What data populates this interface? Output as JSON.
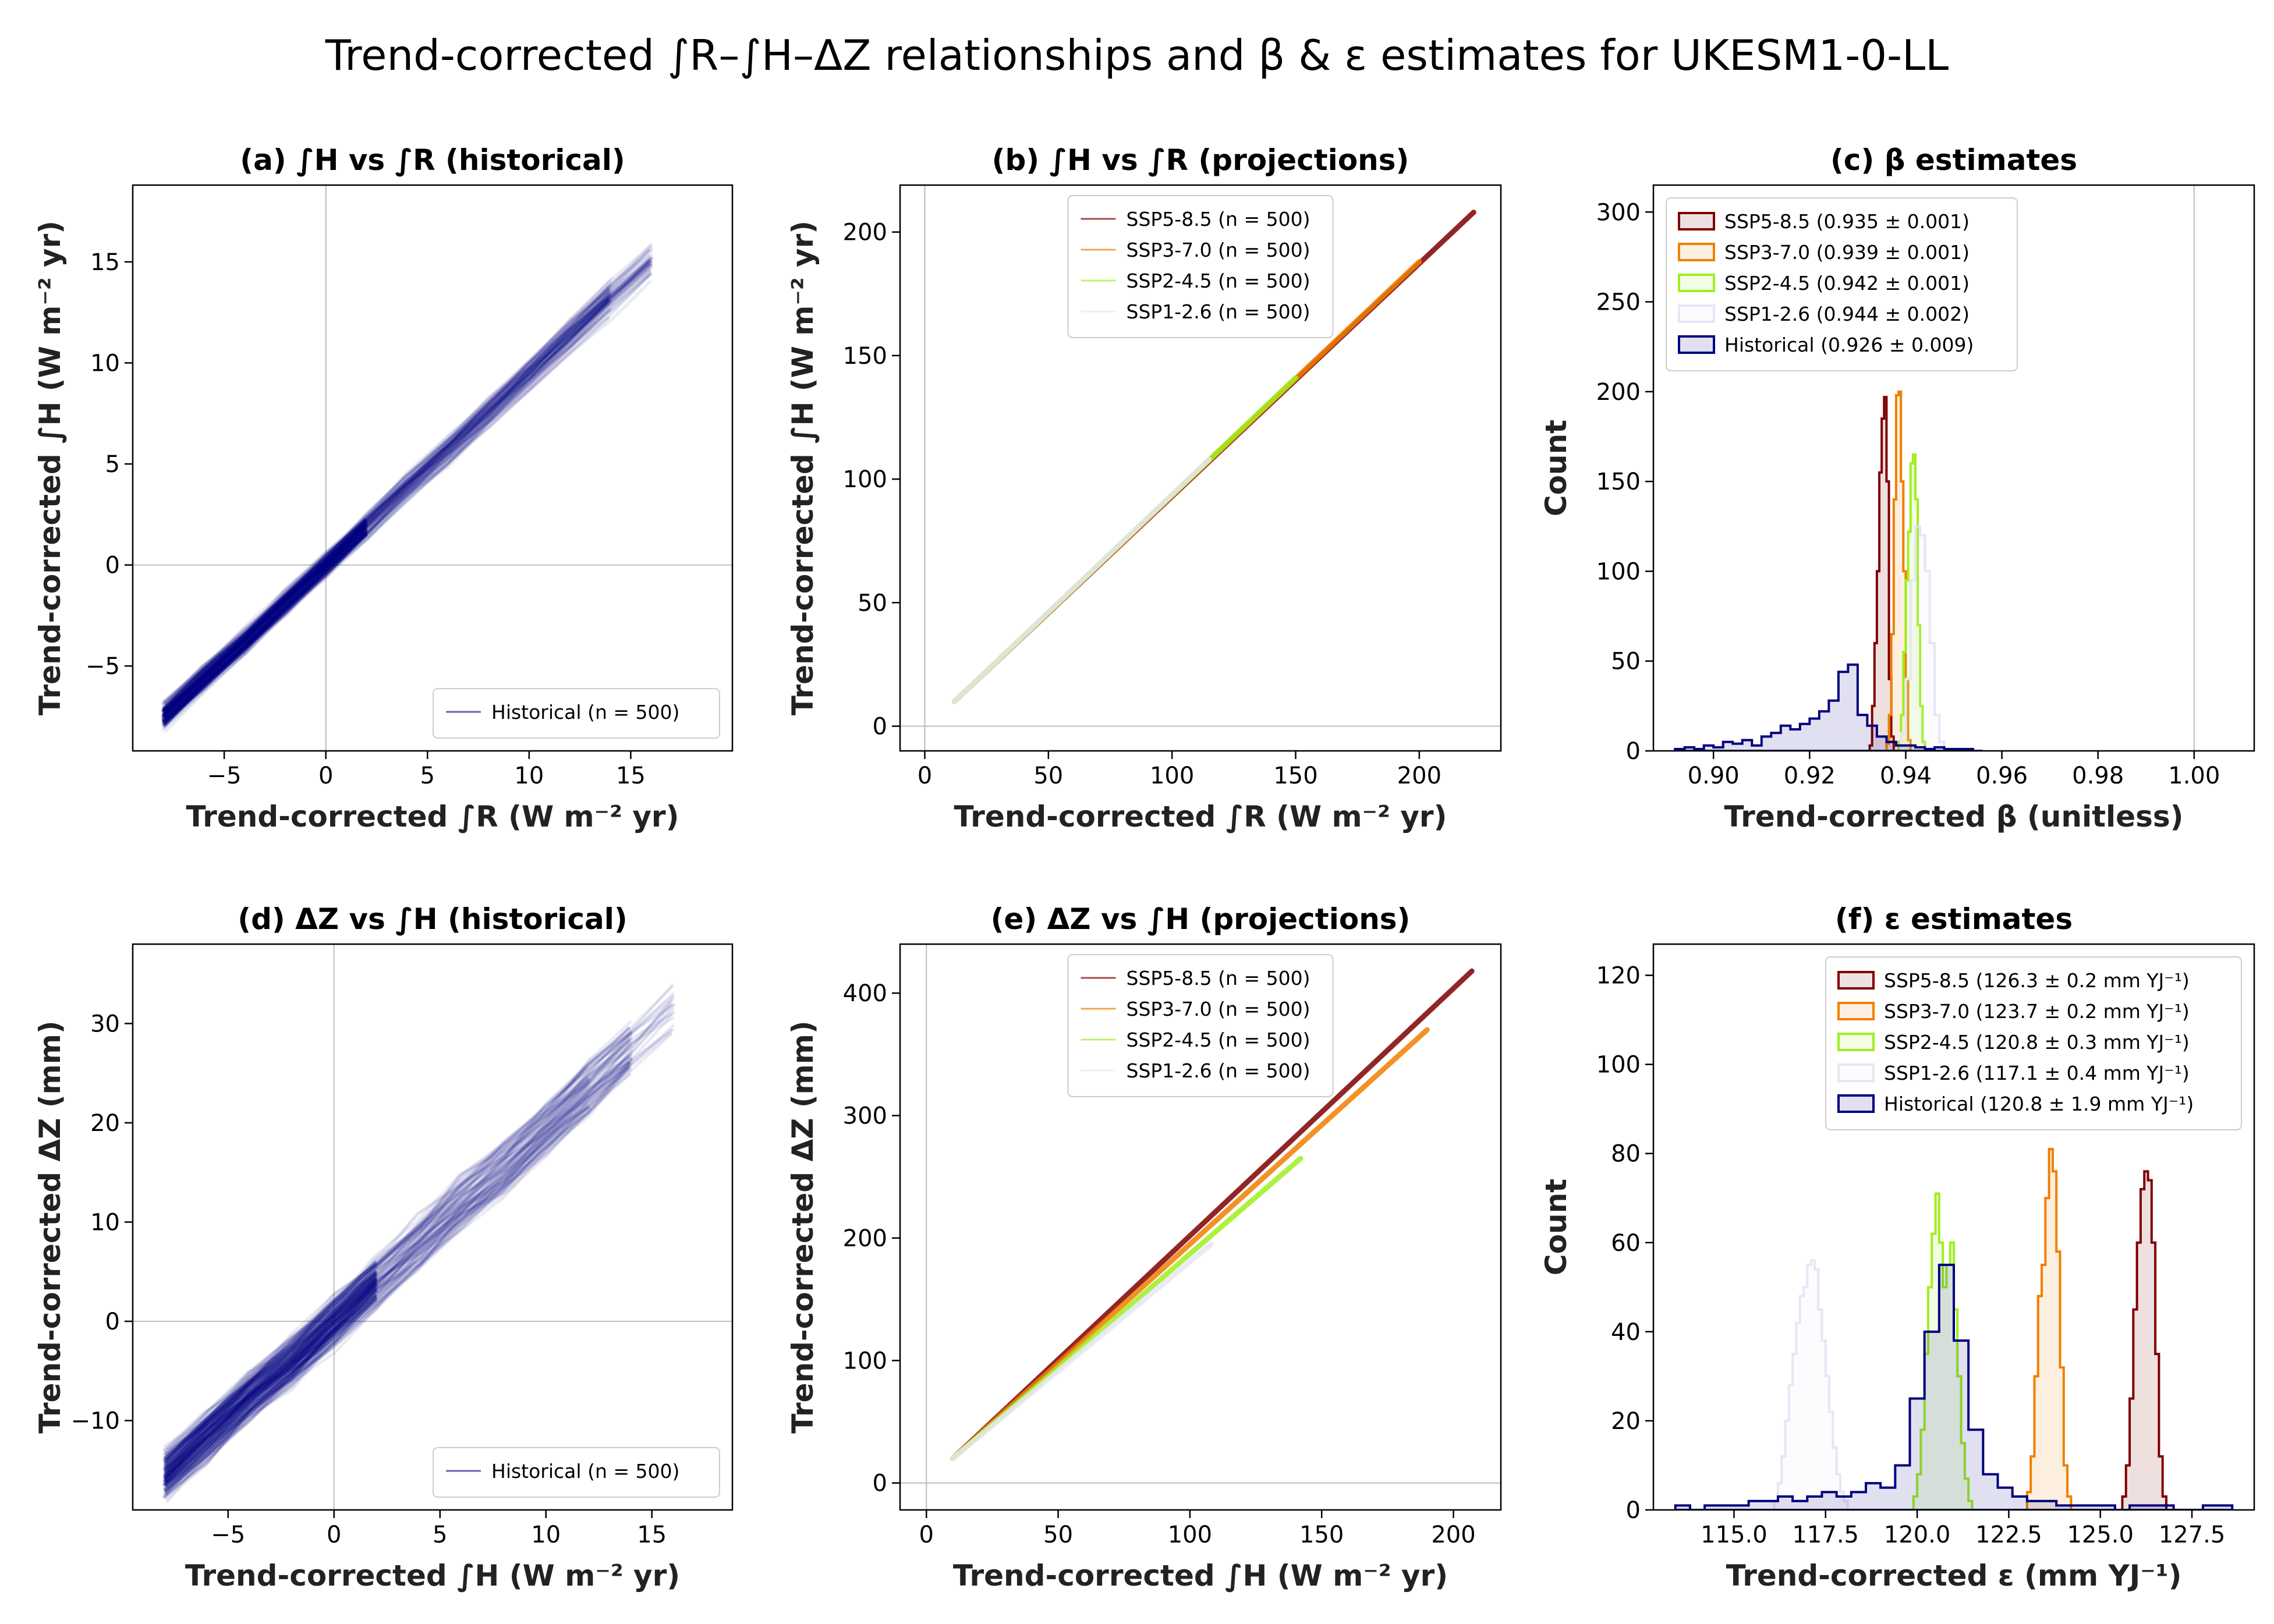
{
  "title": "Trend-corrected ∫R–∫H–ΔZ relationships and β & ε estimates for UKESM1-0-LL",
  "colors": {
    "ssp585": "#7f0000",
    "ssp370": "#f07f00",
    "ssp245": "#9fef1f",
    "ssp126": "#e6e6f5",
    "historical": "#000080"
  },
  "chart_data": [
    {
      "id": "a",
      "type": "line",
      "title": "(a) ∫H vs ∫R (historical)",
      "xlabel": "Trend-corrected ∫R (W m⁻² yr)",
      "ylabel": "Trend-corrected ∫H (W m⁻² yr)",
      "xlim": [
        -9.5,
        20
      ],
      "ylim": [
        -9.2,
        18.8
      ],
      "xticks": [
        -5,
        0,
        5,
        10,
        15
      ],
      "yticks": [
        -5,
        0,
        5,
        10,
        15
      ],
      "zero_lines": true,
      "legend_loc": "lower right",
      "series": [
        {
          "name": "Historical (n = 500)",
          "color_key": "historical",
          "n": 500,
          "style": "ensemble",
          "x": [
            -8,
            -6,
            -4,
            -2,
            0,
            2,
            4,
            6,
            8,
            10,
            12,
            14,
            16,
            18
          ],
          "y": [
            -7.5,
            -5.6,
            -3.8,
            -1.9,
            0,
            1.9,
            3.8,
            5.6,
            7.5,
            9.4,
            11.3,
            13.2,
            15.0,
            16.9
          ],
          "spread": 0.55
        }
      ]
    },
    {
      "id": "b",
      "type": "line",
      "title": "(b) ∫H vs ∫R (projections)",
      "xlabel": "Trend-corrected ∫R (W m⁻² yr)",
      "ylabel": "Trend-corrected ∫H (W m⁻² yr)",
      "xlim": [
        -10,
        233
      ],
      "ylim": [
        -10,
        219
      ],
      "xticks": [
        0,
        50,
        100,
        150,
        200
      ],
      "yticks": [
        0,
        50,
        100,
        150,
        200
      ],
      "zero_lines": true,
      "legend_loc": "upper center",
      "series": [
        {
          "name": "SSP5-8.5 (n = 500)",
          "color_key": "ssp585",
          "style": "line",
          "x": [
            12,
            222
          ],
          "y": [
            10,
            208
          ]
        },
        {
          "name": "SSP3-7.0 (n = 500)",
          "color_key": "ssp370",
          "style": "line",
          "x": [
            12,
            200
          ],
          "y": [
            10,
            188
          ]
        },
        {
          "name": "SSP2-4.5 (n = 500)",
          "color_key": "ssp245",
          "style": "line",
          "x": [
            12,
            150
          ],
          "y": [
            10,
            141
          ]
        },
        {
          "name": "SSP1-2.6 (n = 500)",
          "color_key": "ssp126",
          "style": "line",
          "x": [
            12,
            115
          ],
          "y": [
            10,
            108
          ]
        }
      ]
    },
    {
      "id": "c",
      "type": "bar",
      "title": "(c) β estimates",
      "xlabel": "Trend-corrected β (unitless)",
      "ylabel": "Count",
      "xlim": [
        0.8875,
        1.0125
      ],
      "ylim": [
        0,
        315
      ],
      "xticks": [
        0.9,
        0.92,
        0.94,
        0.96,
        0.98,
        1.0
      ],
      "xtick_labels": [
        "0.90",
        "0.92",
        "0.94",
        "0.96",
        "0.98",
        "1.00"
      ],
      "yticks": [
        0,
        50,
        100,
        150,
        200,
        250,
        300
      ],
      "vline": 1.0,
      "legend_loc": "upper left",
      "series": [
        {
          "name": "SSP5-8.5 (0.935 ± 0.001)",
          "color_key": "ssp585",
          "hist": true,
          "bins": [
            0.9325,
            0.933,
            0.9335,
            0.934,
            0.9345,
            0.935,
            0.9355,
            0.936,
            0.9365,
            0.937,
            0.9375
          ],
          "counts": [
            3,
            25,
            60,
            100,
            155,
            185,
            197,
            150,
            40,
            8
          ]
        },
        {
          "name": "SSP3-7.0 (0.939 ± 0.001)",
          "color_key": "ssp370",
          "hist": true,
          "bins": [
            0.936,
            0.9365,
            0.937,
            0.9375,
            0.938,
            0.9385,
            0.939,
            0.9395,
            0.94,
            0.9405,
            0.941
          ],
          "counts": [
            4,
            20,
            65,
            140,
            198,
            200,
            150,
            100,
            40,
            6
          ]
        },
        {
          "name": "SSP2-4.5 (0.942 ± 0.001)",
          "color_key": "ssp245",
          "hist": true,
          "bins": [
            0.9385,
            0.939,
            0.9395,
            0.94,
            0.9405,
            0.941,
            0.9415,
            0.942,
            0.9425,
            0.943,
            0.9435,
            0.944
          ],
          "counts": [
            5,
            20,
            55,
            95,
            122,
            160,
            165,
            140,
            70,
            25,
            5
          ]
        },
        {
          "name": "SSP1-2.6 (0.944 ± 0.002)",
          "color_key": "ssp126",
          "hist": true,
          "bins": [
            0.939,
            0.94,
            0.941,
            0.942,
            0.943,
            0.944,
            0.945,
            0.946,
            0.947,
            0.948
          ],
          "counts": [
            10,
            40,
            95,
            125,
            120,
            100,
            60,
            20,
            5
          ]
        },
        {
          "name": "Historical (0.926 ± 0.009)",
          "color_key": "historical",
          "hist": true,
          "bins": [
            0.892,
            0.894,
            0.896,
            0.898,
            0.9,
            0.902,
            0.904,
            0.906,
            0.908,
            0.91,
            0.912,
            0.914,
            0.916,
            0.918,
            0.92,
            0.922,
            0.924,
            0.926,
            0.928,
            0.93,
            0.932,
            0.934,
            0.936,
            0.938,
            0.94,
            0.942,
            0.944,
            0.946,
            0.948,
            0.95,
            0.952,
            0.954,
            0.956
          ],
          "counts": [
            1,
            2,
            1,
            3,
            2,
            5,
            4,
            6,
            3,
            8,
            10,
            14,
            12,
            15,
            18,
            22,
            28,
            44,
            48,
            20,
            14,
            8,
            5,
            3,
            3,
            2,
            1,
            2,
            1,
            1,
            1,
            0
          ]
        }
      ]
    },
    {
      "id": "d",
      "type": "line",
      "title": "(d) ΔZ vs ∫H (historical)",
      "xlabel": "Trend-corrected ∫H (W m⁻² yr)",
      "ylabel": "Trend-corrected ΔZ (mm)",
      "xlim": [
        -9.5,
        18.8
      ],
      "ylim": [
        -19,
        38
      ],
      "xticks": [
        -5,
        0,
        5,
        10,
        15
      ],
      "yticks": [
        -10,
        0,
        10,
        20,
        30
      ],
      "zero_lines": true,
      "legend_loc": "lower right",
      "series": [
        {
          "name": "Historical (n = 500)",
          "color_key": "historical",
          "n": 500,
          "style": "ensemble",
          "x": [
            -8,
            -6,
            -4,
            -2,
            0,
            2,
            4,
            6,
            8,
            10,
            12,
            14,
            16,
            17
          ],
          "y": [
            -15.5,
            -11.5,
            -7.5,
            -4,
            0,
            4,
            8,
            12,
            15.5,
            19.5,
            23.5,
            27.5,
            31.5,
            33.5
          ],
          "spread": 2.3
        }
      ]
    },
    {
      "id": "e",
      "type": "line",
      "title": "(e) ΔZ vs ∫H (projections)",
      "xlabel": "Trend-corrected ∫H (W m⁻² yr)",
      "ylabel": "Trend-corrected ΔZ (mm)",
      "xlim": [
        -10,
        218
      ],
      "ylim": [
        -22,
        440
      ],
      "xticks": [
        0,
        50,
        100,
        150,
        200
      ],
      "yticks": [
        0,
        100,
        200,
        300,
        400
      ],
      "zero_lines": true,
      "legend_loc": "upper center",
      "series": [
        {
          "name": "SSP5-8.5 (n = 500)",
          "color_key": "ssp585",
          "style": "line",
          "x": [
            10,
            207
          ],
          "y": [
            20,
            418
          ]
        },
        {
          "name": "SSP3-7.0 (n = 500)",
          "color_key": "ssp370",
          "style": "line",
          "x": [
            10,
            190
          ],
          "y": [
            20,
            370
          ]
        },
        {
          "name": "SSP2-4.5 (n = 500)",
          "color_key": "ssp245",
          "style": "line",
          "x": [
            10,
            142
          ],
          "y": [
            20,
            265
          ]
        },
        {
          "name": "SSP1-2.6 (n = 500)",
          "color_key": "ssp126",
          "style": "line",
          "x": [
            10,
            108
          ],
          "y": [
            20,
            195
          ]
        }
      ]
    },
    {
      "id": "f",
      "type": "bar",
      "title": "(f) ε estimates",
      "xlabel": "Trend-corrected ε (mm YJ⁻¹)",
      "ylabel": "Count",
      "xlim": [
        112.8,
        129.2
      ],
      "ylim": [
        0,
        127
      ],
      "xticks": [
        115.0,
        117.5,
        120.0,
        122.5,
        125.0,
        127.5
      ],
      "xtick_labels": [
        "115.0",
        "117.5",
        "120.0",
        "122.5",
        "125.0",
        "127.5"
      ],
      "yticks": [
        0,
        20,
        40,
        60,
        80,
        100,
        120
      ],
      "legend_loc": "upper right",
      "series": [
        {
          "name": "SSP5-8.5 (126.3 ± 0.2 mm YJ⁻¹)",
          "color_key": "ssp585",
          "hist": true,
          "bins": [
            125.6,
            125.7,
            125.8,
            125.9,
            126.0,
            126.1,
            126.2,
            126.3,
            126.4,
            126.5,
            126.6,
            126.7,
            126.8
          ],
          "counts": [
            3,
            10,
            25,
            45,
            60,
            72,
            76,
            74,
            60,
            35,
            12,
            3
          ]
        },
        {
          "name": "SSP3-7.0 (123.7 ± 0.2 mm YJ⁻¹)",
          "color_key": "ssp370",
          "hist": true,
          "bins": [
            123.0,
            123.1,
            123.2,
            123.3,
            123.4,
            123.5,
            123.6,
            123.7,
            123.8,
            123.9,
            124.0,
            124.1,
            124.2
          ],
          "counts": [
            4,
            12,
            30,
            48,
            55,
            70,
            81,
            76,
            58,
            32,
            10,
            3
          ]
        },
        {
          "name": "SSP2-4.5 (120.8 ± 0.3 mm YJ⁻¹)",
          "color_key": "ssp245",
          "hist": true,
          "bins": [
            119.9,
            120.0,
            120.1,
            120.2,
            120.3,
            120.4,
            120.5,
            120.6,
            120.7,
            120.8,
            120.9,
            121.0,
            121.1,
            121.2,
            121.3,
            121.4,
            121.5
          ],
          "counts": [
            3,
            8,
            18,
            35,
            50,
            62,
            71,
            60,
            50,
            55,
            60,
            45,
            30,
            15,
            7,
            2
          ]
        },
        {
          "name": "SSP1-2.6 (117.1 ± 0.4 mm YJ⁻¹)",
          "color_key": "ssp126",
          "hist": true,
          "bins": [
            116.1,
            116.2,
            116.3,
            116.4,
            116.5,
            116.6,
            116.7,
            116.8,
            116.9,
            117.0,
            117.1,
            117.2,
            117.3,
            117.4,
            117.5,
            117.6,
            117.7,
            117.8,
            117.9,
            118.0,
            118.1
          ],
          "counts": [
            2,
            6,
            12,
            20,
            28,
            35,
            42,
            48,
            50,
            55,
            56,
            54,
            45,
            38,
            30,
            22,
            14,
            8,
            4,
            2
          ]
        },
        {
          "name": "Historical (120.8 ± 1.9 mm YJ⁻¹)",
          "color_key": "historical",
          "hist": true,
          "bins": [
            113.4,
            113.8,
            114.2,
            114.6,
            115.0,
            115.4,
            115.8,
            116.2,
            116.6,
            117.0,
            117.4,
            117.8,
            118.2,
            118.6,
            119.0,
            119.4,
            119.8,
            120.2,
            120.6,
            121.0,
            121.4,
            121.8,
            122.2,
            122.6,
            123.0,
            123.4,
            123.8,
            124.2,
            124.6,
            125.0,
            125.4,
            125.8,
            126.2,
            126.6,
            127.0,
            127.4,
            127.8,
            128.2,
            128.6
          ],
          "counts": [
            1,
            0,
            1,
            1,
            1,
            2,
            2,
            3,
            2,
            3,
            4,
            3,
            4,
            6,
            5,
            10,
            25,
            40,
            55,
            38,
            18,
            8,
            5,
            3,
            2,
            2,
            1,
            1,
            1,
            1,
            0,
            1,
            1,
            1,
            0,
            0,
            1,
            1
          ]
        }
      ]
    }
  ]
}
